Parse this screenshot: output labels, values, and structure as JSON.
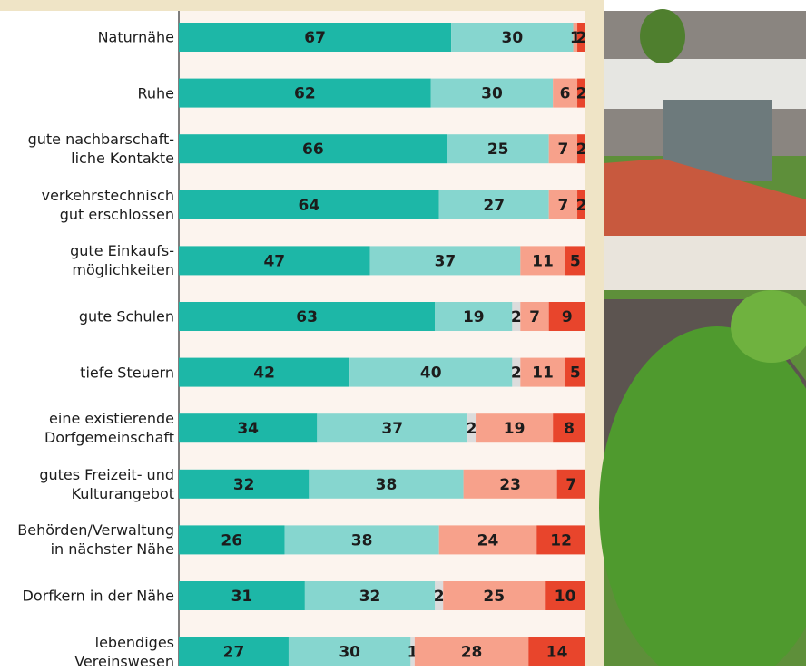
{
  "chart_data": {
    "type": "stacked-bar-horizontal",
    "categories": [
      "Naturnähe",
      "Ruhe",
      "gute nachbarschaft-\nliche Kontakte",
      "verkehrstechnisch\ngut erschlossen",
      "gute Einkaufs-\nmöglichkeiten",
      "gute Schulen",
      "tiefe Steuern",
      "eine existierende\nDorfgemeinschaft",
      "gutes Freizeit- und\nKulturangebot",
      "Behörden/Verwaltung\nin nächster Nähe",
      "Dorfkern in der Nähe",
      "lebendiges\nVereinswesen"
    ],
    "series": [
      {
        "color": "#1db7a7",
        "values": [
          67,
          62,
          66,
          64,
          47,
          63,
          42,
          34,
          32,
          26,
          31,
          27
        ]
      },
      {
        "color": "#86d6cf",
        "values": [
          30,
          30,
          25,
          27,
          37,
          19,
          40,
          37,
          38,
          38,
          32,
          30
        ]
      },
      {
        "color": "#dcdcdc",
        "values": [
          null,
          null,
          null,
          null,
          null,
          2,
          2,
          2,
          null,
          null,
          2,
          1
        ]
      },
      {
        "color": "#f7a18b",
        "values": [
          1,
          6,
          7,
          7,
          11,
          7,
          11,
          19,
          23,
          24,
          25,
          28
        ]
      },
      {
        "color": "#e8452c",
        "values": [
          2,
          2,
          2,
          2,
          5,
          9,
          5,
          8,
          7,
          12,
          10,
          14
        ]
      }
    ],
    "xlim": [
      0,
      100
    ]
  }
}
